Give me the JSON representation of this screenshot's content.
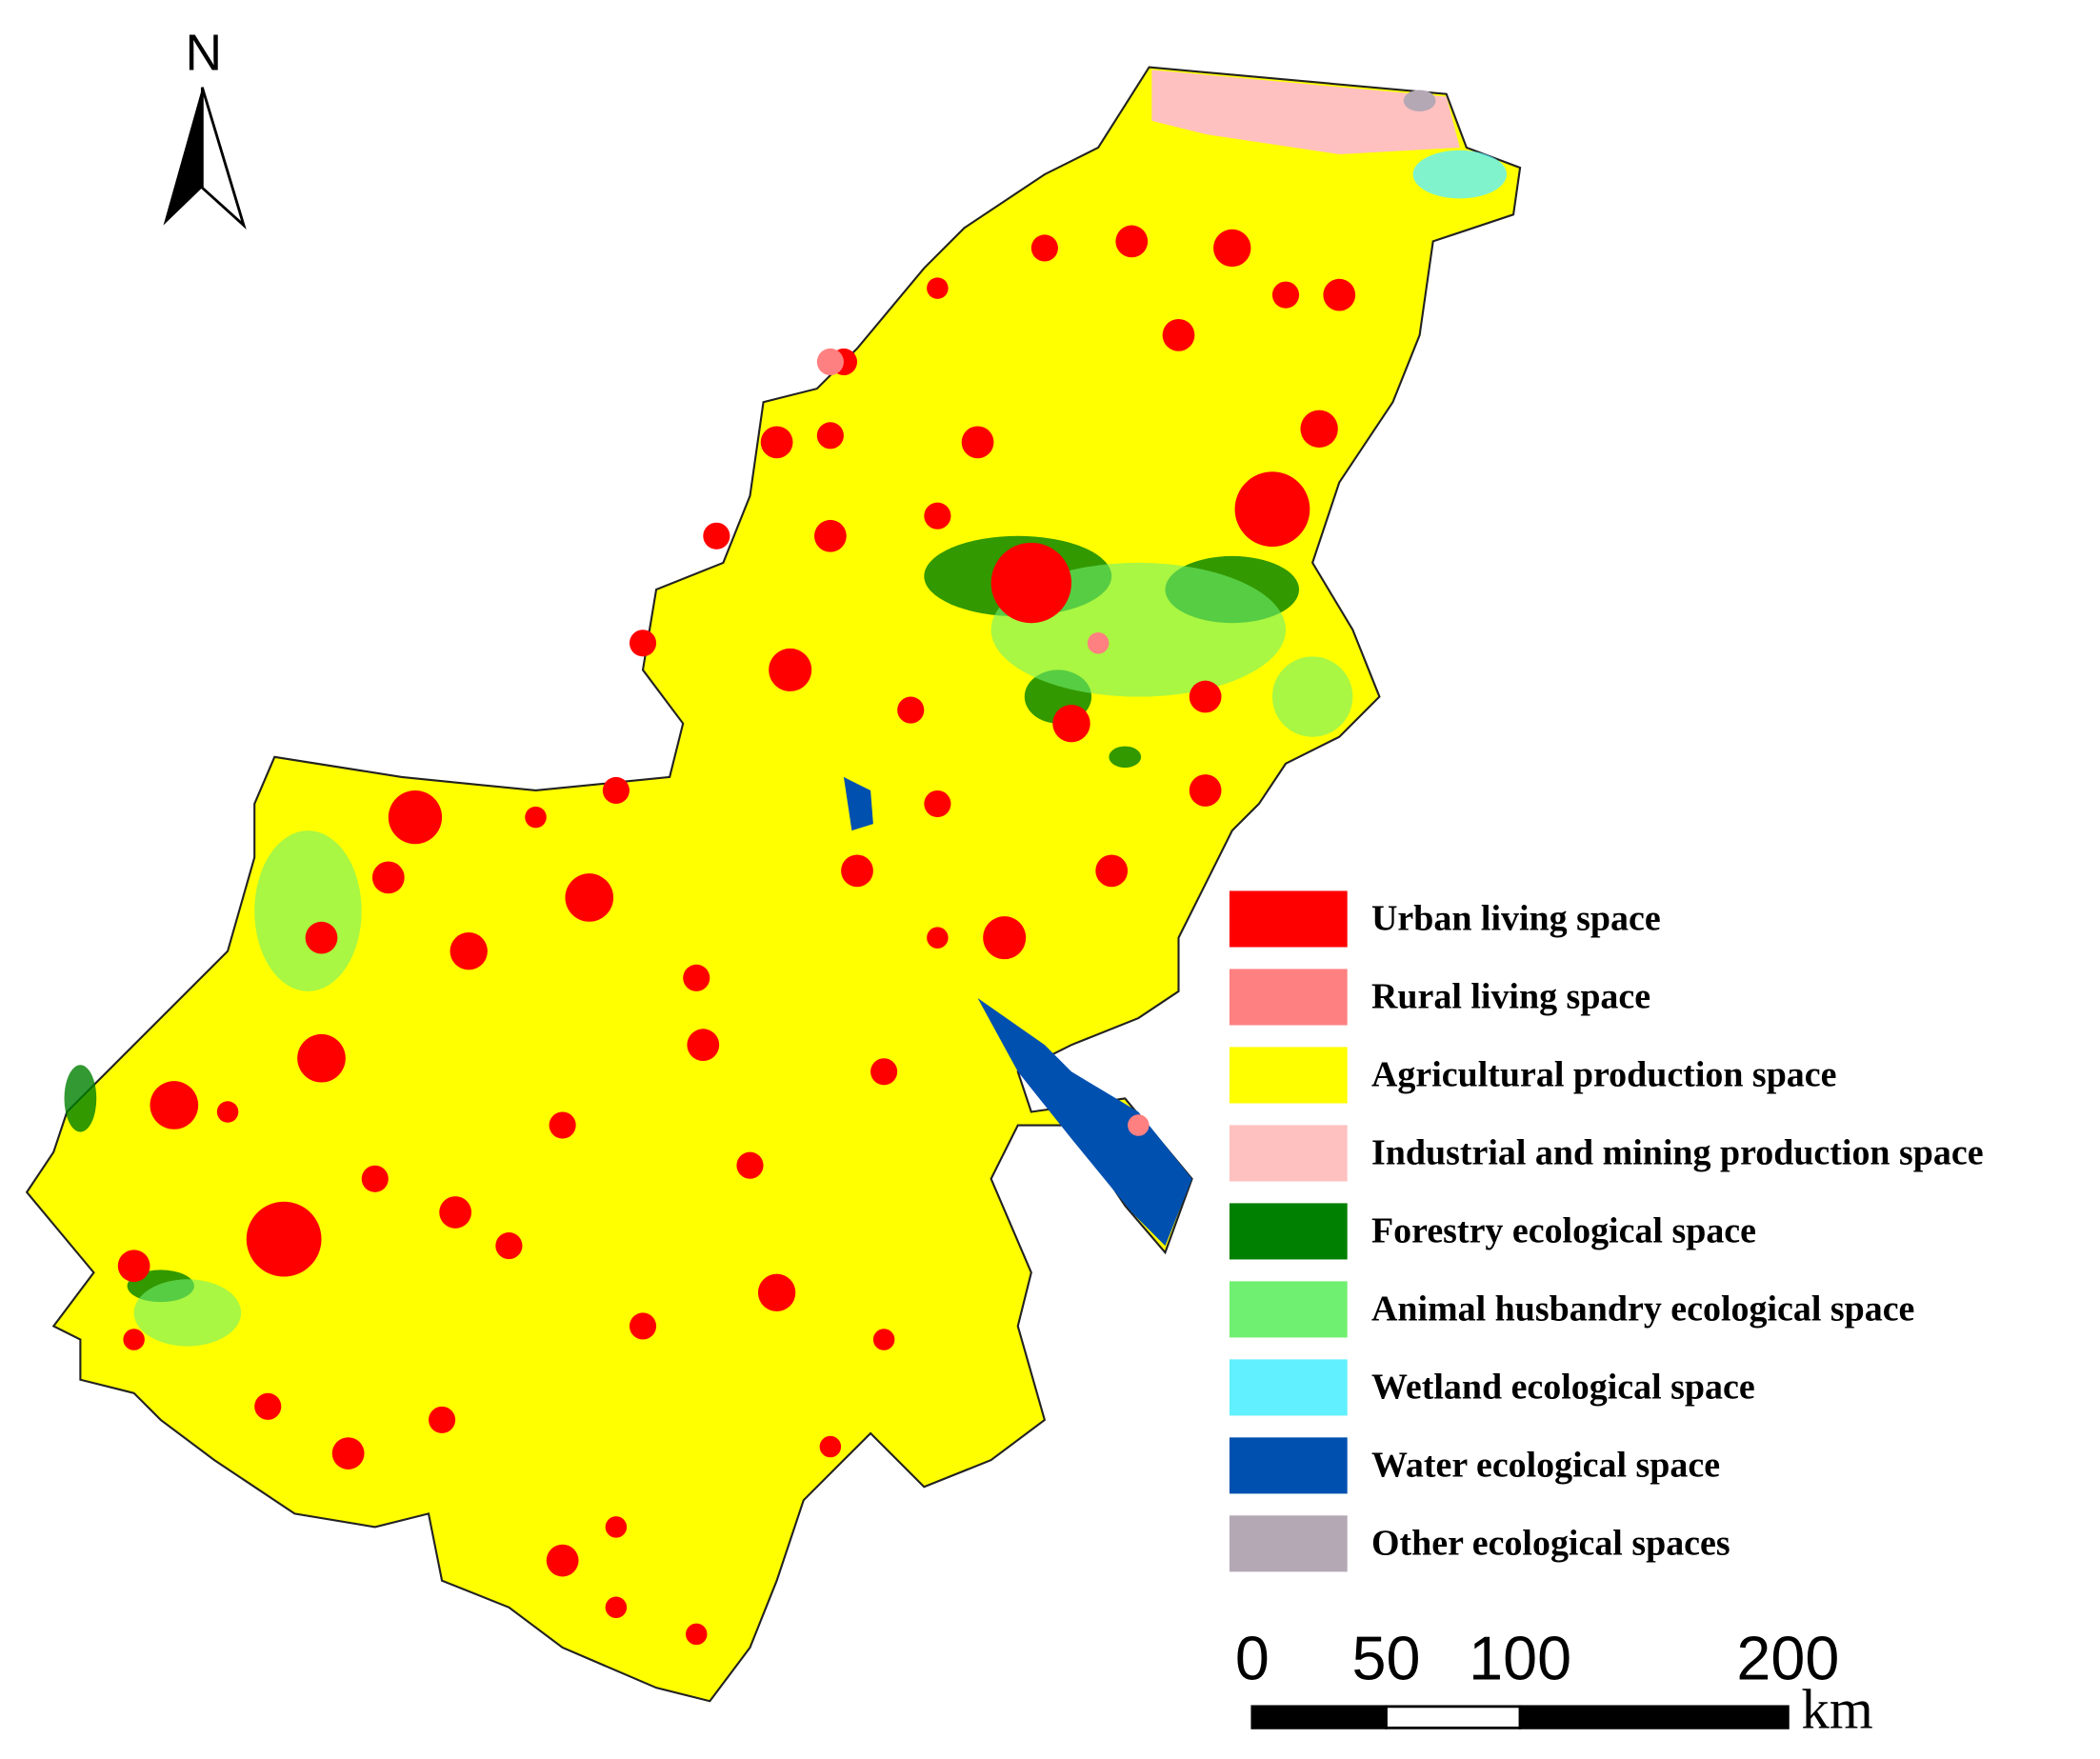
{
  "north_arrow": {
    "label": "N"
  },
  "legend": {
    "items": [
      {
        "label": "Urban living space",
        "color": "#ff0000"
      },
      {
        "label": "Rural living space",
        "color": "#ff8080"
      },
      {
        "label": "Agricultural production space",
        "color": "#ffff00"
      },
      {
        "label": "Industrial and mining production space",
        "color": "#ffc0c0"
      },
      {
        "label": "Forestry ecological space",
        "color": "#008000"
      },
      {
        "label": "Animal husbandry ecological space",
        "color": "#70f070"
      },
      {
        "label": "Wetland ecological space",
        "color": "#60f0ff"
      },
      {
        "label": "Water ecological space",
        "color": "#0050b0"
      },
      {
        "label": "Other ecological spaces",
        "color": "#b4a8b4"
      }
    ]
  },
  "scale_bar": {
    "ticks": [
      0,
      50,
      100,
      200
    ],
    "unit": "km"
  }
}
